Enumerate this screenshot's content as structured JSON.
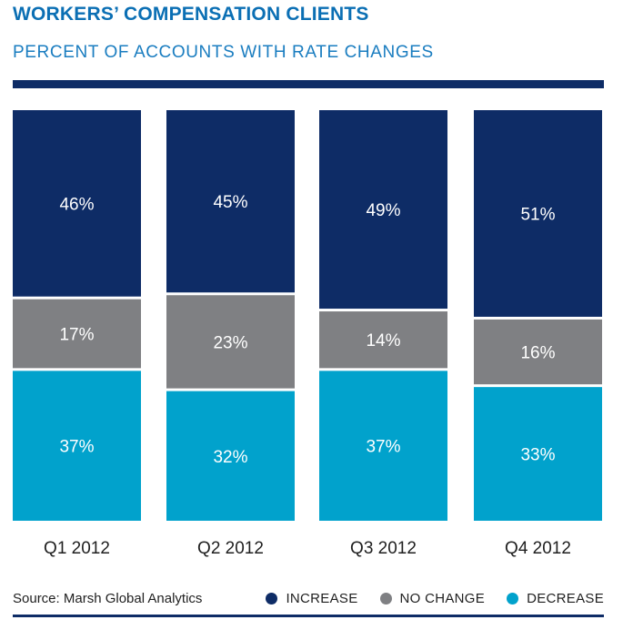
{
  "title": "WORKERS’ COMPENSATION CLIENTS",
  "subtitle": "PERCENT OF ACCOUNTS WITH RATE CHANGES",
  "source": "Source: Marsh Global Analytics",
  "colors": {
    "increase": "#0e2c66",
    "no_change": "#7f8083",
    "decrease": "#01a2cc"
  },
  "chart_data": {
    "type": "bar",
    "stacked": true,
    "normalized_percent": true,
    "categories": [
      "Q1 2012",
      "Q2 2012",
      "Q3 2012",
      "Q4 2012"
    ],
    "series": [
      {
        "name": "INCREASE",
        "values": [
          46,
          45,
          49,
          51
        ],
        "labels": [
          "46%",
          "45%",
          "49%",
          "51%"
        ]
      },
      {
        "name": "NO CHANGE",
        "values": [
          17,
          23,
          14,
          16
        ],
        "labels": [
          "17%",
          "23%",
          "14%",
          "16%"
        ]
      },
      {
        "name": "DECREASE",
        "values": [
          37,
          32,
          37,
          33
        ],
        "labels": [
          "37%",
          "32%",
          "37%",
          "33%"
        ]
      }
    ],
    "legend_position": "bottom-right",
    "grid": false
  }
}
